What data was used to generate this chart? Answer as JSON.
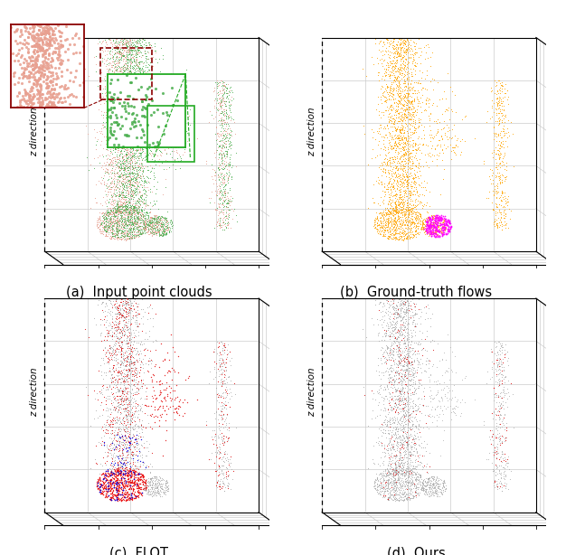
{
  "subplots": [
    {
      "label": "(a)  Input point clouds"
    },
    {
      "label": "(b)  Ground-truth flows"
    },
    {
      "label": "(c)  FLOT"
    },
    {
      "label": "(d)  Ours"
    }
  ],
  "colors": {
    "pc1": "#E8A090",
    "pc2": "#4CAF50",
    "orange": "#FFA500",
    "magenta": "#FF00FF",
    "gray": "#AAAAAA",
    "red": "#EE1111",
    "blue": "#0000EE",
    "dark_red_box": "#8B0000",
    "green_box": "#22AA22",
    "background": "#FFFFFF",
    "grid": "#CCCCCC",
    "axis": "#888888"
  },
  "grid_color": "#CCCCCC",
  "seed": 42,
  "label_fontsize": 10.5
}
